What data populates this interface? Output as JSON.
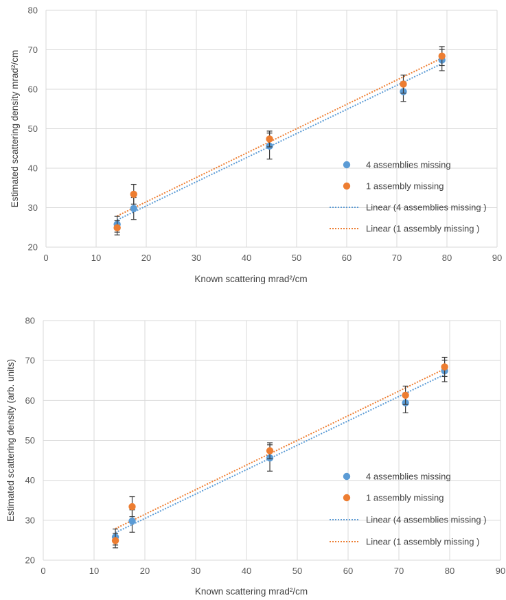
{
  "chart_data": [
    {
      "type": "scatter",
      "xlabel": "Known scattering mrad²/cm",
      "ylabel": "Estimated scattering density mrad²/cm",
      "xlim": [
        0,
        90
      ],
      "ylim": [
        20,
        80
      ],
      "xticks": [
        "0",
        "10",
        "20",
        "30",
        "40",
        "50",
        "60",
        "70",
        "80",
        "90"
      ],
      "yticks": [
        "20",
        "30",
        "40",
        "50",
        "60",
        "70",
        "80"
      ],
      "grid": true,
      "legend_position": "right",
      "series": [
        {
          "name": "4 assemblies missing",
          "color": "#5b9bd5",
          "x": [
            14.2,
            17.5,
            44.6,
            71.3,
            79.0
          ],
          "y": [
            25.8,
            29.8,
            45.6,
            59.4,
            67.4
          ],
          "error": [
            2.0,
            2.8,
            3.3,
            2.5,
            2.7
          ]
        },
        {
          "name": "1 assembly missing",
          "color": "#ed7d31",
          "x": [
            14.2,
            17.5,
            44.6,
            71.3,
            79.0
          ],
          "y": [
            24.9,
            33.4,
            47.4,
            61.3,
            68.4
          ],
          "error": [
            1.8,
            2.5,
            2.0,
            2.3,
            2.4
          ]
        }
      ],
      "trendlines": [
        {
          "name": "Linear (4 assemblies missing )",
          "color": "#5b9bd5",
          "x": [
            14.2,
            79.0
          ],
          "y": [
            26.9,
            66.5
          ]
        },
        {
          "name": "Linear (1 assembly missing )",
          "color": "#ed7d31",
          "x": [
            14.2,
            79.0
          ],
          "y": [
            27.9,
            67.9
          ]
        }
      ]
    },
    {
      "type": "scatter",
      "xlabel": "Known scattering mrad²/cm",
      "ylabel": "Estimated scattering density (arb. units)",
      "xlim": [
        0,
        90
      ],
      "ylim": [
        20,
        80
      ],
      "xticks": [
        "0",
        "10",
        "20",
        "30",
        "40",
        "50",
        "60",
        "70",
        "80",
        "90"
      ],
      "yticks": [
        "20",
        "30",
        "40",
        "50",
        "60",
        "70",
        "80"
      ],
      "grid": true,
      "legend_position": "right",
      "series": [
        {
          "name": "4 assemblies missing",
          "color": "#5b9bd5",
          "x": [
            14.2,
            17.5,
            44.6,
            71.3,
            79.0
          ],
          "y": [
            25.8,
            29.8,
            45.6,
            59.4,
            67.4
          ],
          "error": [
            2.0,
            2.8,
            3.3,
            2.5,
            2.7
          ]
        },
        {
          "name": "1 assembly missing",
          "color": "#ed7d31",
          "x": [
            14.2,
            17.5,
            44.6,
            71.3,
            79.0
          ],
          "y": [
            24.9,
            33.4,
            47.4,
            61.3,
            68.4
          ],
          "error": [
            1.8,
            2.5,
            2.0,
            2.3,
            2.4
          ]
        }
      ],
      "trendlines": [
        {
          "name": "Linear (4 assemblies missing )",
          "color": "#5b9bd5",
          "x": [
            14.2,
            79.0
          ],
          "y": [
            26.9,
            66.5
          ]
        },
        {
          "name": "Linear (1 assembly missing )",
          "color": "#ed7d31",
          "x": [
            14.2,
            79.0
          ],
          "y": [
            27.9,
            67.9
          ]
        }
      ]
    }
  ]
}
